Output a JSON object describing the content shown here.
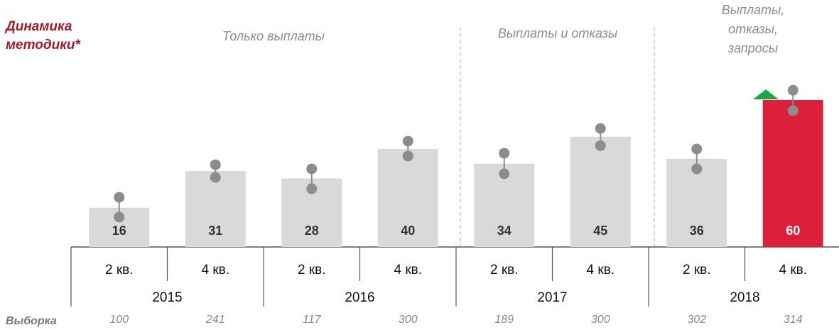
{
  "chart_data": {
    "type": "bar",
    "title": [
      "Динамика",
      "методики*"
    ],
    "periods": [
      [
        "Только выплаты"
      ],
      [
        "Выплаты и отказы"
      ],
      [
        "Выплаты,",
        "отказы,",
        "запросы"
      ]
    ],
    "categories": [
      "2 кв.",
      "4 кв.",
      "2 кв.",
      "4 кв.",
      "2 кв.",
      "4 кв.",
      "2 кв.",
      "4 кв."
    ],
    "years": [
      "2015",
      "2016",
      "2017",
      "2018"
    ],
    "values": [
      16,
      31,
      28,
      40,
      34,
      45,
      36,
      60
    ],
    "colors": [
      "#d9d9d9",
      "#d9d9d9",
      "#d9d9d9",
      "#d9d9d9",
      "#d9d9d9",
      "#d9d9d9",
      "#d9d9d9",
      "#dc1f3a"
    ],
    "markers": {
      "upper": [
        20.3,
        33.6,
        31.9,
        43.2,
        38.3,
        48.4,
        40,
        64
      ],
      "lower": [
        12.2,
        28.4,
        23.8,
        37.1,
        29.9,
        41.4,
        31.9,
        55.7
      ],
      "color": "#8c8c8c"
    },
    "sample_label": "Выборка",
    "sample_sizes": [
      100,
      241,
      117,
      300,
      189,
      300,
      302,
      314
    ],
    "ylim": [
      0,
      90
    ]
  }
}
